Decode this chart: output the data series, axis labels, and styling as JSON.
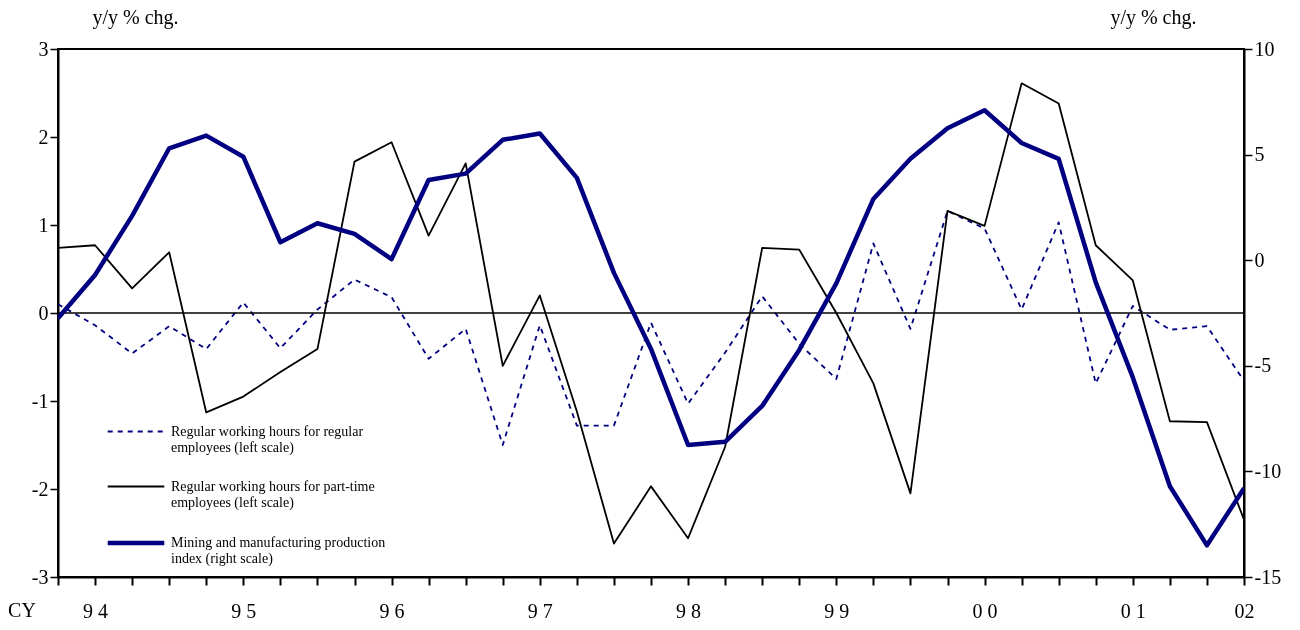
{
  "chart_data": {
    "type": "line",
    "categories": [
      null,
      "9 4",
      null,
      null,
      null,
      "9 5",
      null,
      null,
      null,
      "9 6",
      null,
      null,
      null,
      "9 7",
      null,
      null,
      null,
      "9 8",
      null,
      null,
      null,
      "9 9",
      null,
      null,
      null,
      "0 0",
      null,
      null,
      null,
      "0 1",
      null,
      null,
      "02"
    ],
    "ylabel": "y/y % chg.",
    "y2label": "y/y % chg.",
    "ylim": [
      -3,
      3
    ],
    "yticks": [
      -3,
      -2,
      -1,
      0,
      1,
      2,
      3
    ],
    "y2lim": [
      -15,
      10
    ],
    "y2ticks": [
      -15,
      -10,
      -5,
      0,
      5,
      10
    ],
    "ref_lines": [
      {
        "axis": "y",
        "value": 0,
        "color": "#000000"
      }
    ],
    "annotations": [
      "CY"
    ],
    "legend": "bottom left",
    "grid": false,
    "series": [
      {
        "name": "Regular working hours for regular employees (left scale)",
        "color": "#000080",
        "line_style": "dashed",
        "values": [
          0.1,
          -0.14,
          -0.46,
          -0.15,
          -0.41,
          0.12,
          -0.4,
          0.04,
          0.38,
          0.18,
          -0.52,
          -0.18,
          -1.5,
          -0.14,
          -1.28,
          -1.28,
          -0.11,
          -1.03,
          -0.45,
          0.19,
          -0.35,
          -0.75,
          0.79,
          -0.18,
          1.16,
          0.96,
          0.04,
          1.03,
          -0.8,
          0.08,
          -0.19,
          -0.15,
          -0.77
        ]
      },
      {
        "name": "Regular working hours for part-time employees (left scale)",
        "color": "#000000",
        "line_style": "solid",
        "values": [
          0.74,
          0.77,
          0.28,
          0.69,
          -1.13,
          -0.95,
          -0.67,
          -0.41,
          1.72,
          1.94,
          0.88,
          1.7,
          -0.6,
          0.2,
          -1.12,
          -2.62,
          -1.97,
          -2.56,
          -1.52,
          0.74,
          0.72,
          0.0,
          -0.8,
          -2.05,
          1.16,
          0.99,
          2.61,
          2.38,
          0.77,
          0.37,
          -1.23,
          -1.24,
          -2.35
        ]
      },
      {
        "name": "Mining and manufacturing production index (right scale)",
        "color": "#000080",
        "line_style": "solid",
        "axis": "y2",
        "values": [
          -2.75,
          -0.7,
          2.1,
          5.3,
          5.9,
          4.9,
          0.85,
          1.75,
          1.25,
          0.05,
          3.8,
          4.1,
          5.7,
          6.0,
          3.9,
          -0.6,
          -4.2,
          -8.75,
          -8.6,
          -6.9,
          -4.25,
          -1.1,
          2.9,
          4.8,
          6.25,
          7.1,
          5.55,
          4.8,
          -1.05,
          -5.55,
          -10.7,
          -13.5,
          -10.8
        ]
      }
    ]
  }
}
